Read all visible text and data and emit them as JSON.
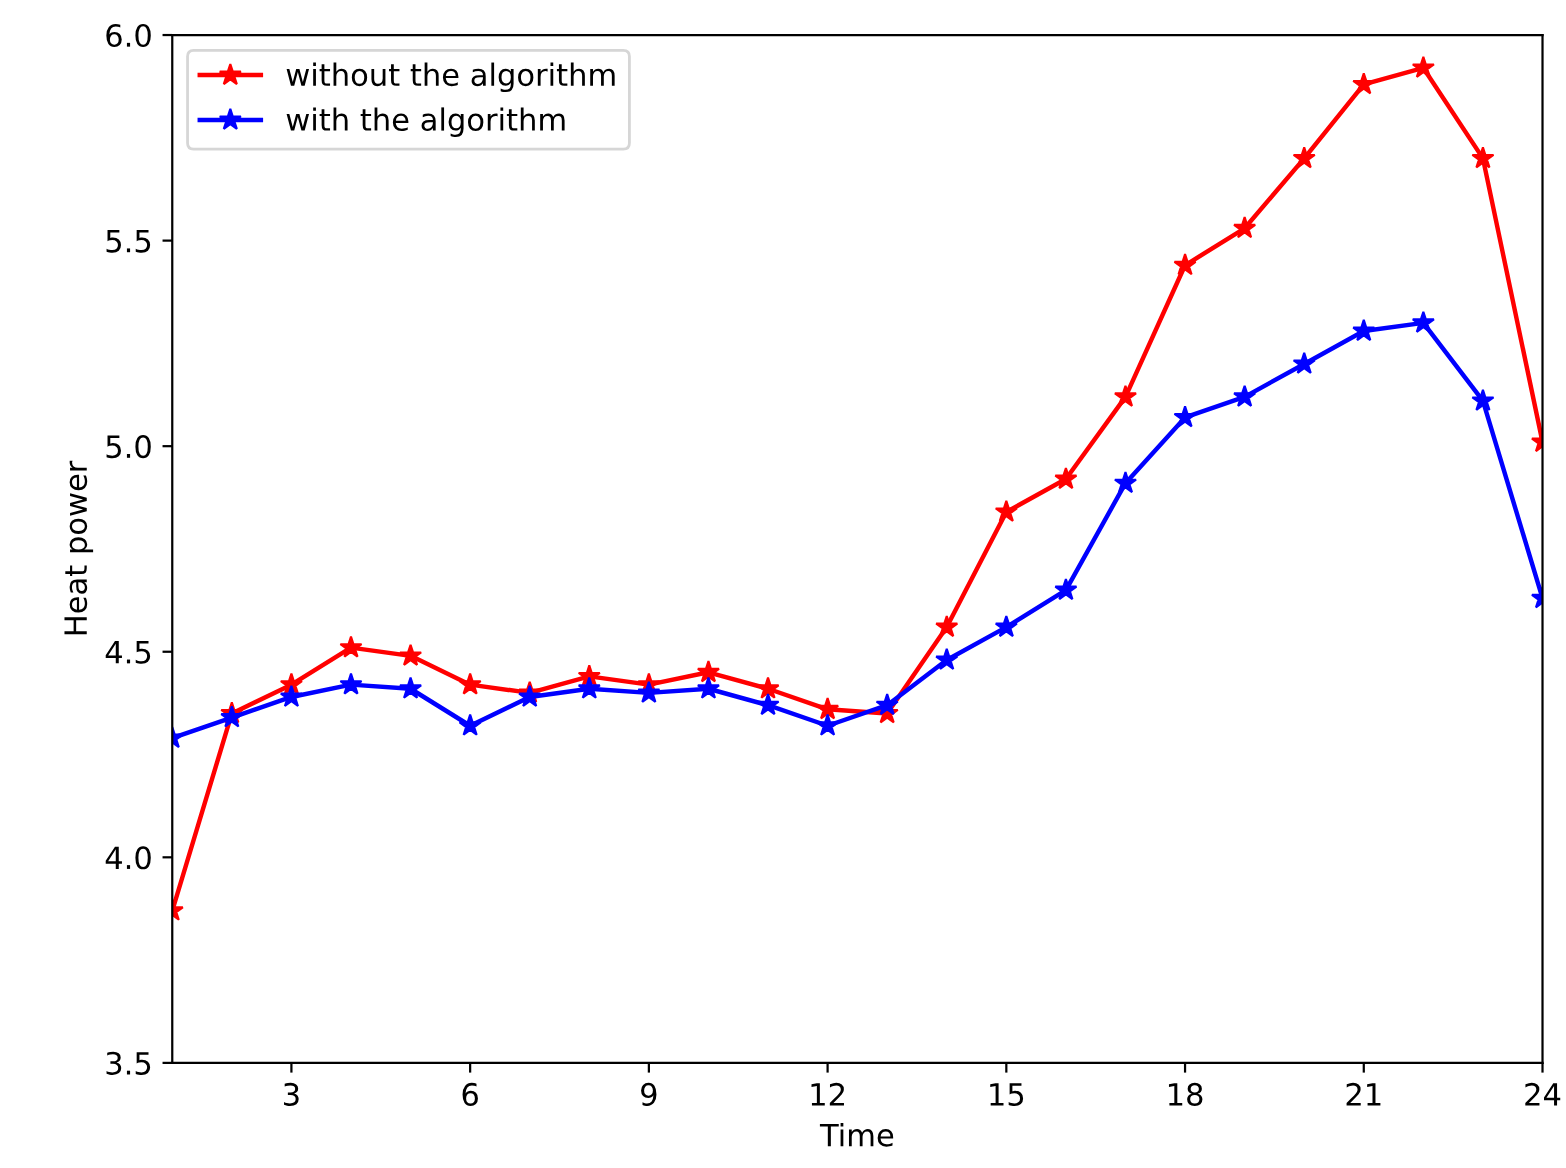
{
  "chart_data": {
    "type": "line",
    "xlabel": "Time",
    "ylabel": "Heat power",
    "x": [
      1,
      2,
      3,
      4,
      5,
      6,
      7,
      8,
      9,
      10,
      11,
      12,
      13,
      14,
      15,
      16,
      17,
      18,
      19,
      20,
      21,
      22,
      23,
      24
    ],
    "series": [
      {
        "name": "without the algorithm",
        "color": "#ff0000",
        "values": [
          3.87,
          4.35,
          4.42,
          4.51,
          4.49,
          4.42,
          4.4,
          4.44,
          4.42,
          4.45,
          4.41,
          4.36,
          4.35,
          4.56,
          4.84,
          4.92,
          5.12,
          5.44,
          5.53,
          5.7,
          5.88,
          5.92,
          5.7,
          5.01
        ]
      },
      {
        "name": "with the algorithm",
        "color": "#0000ff",
        "values": [
          4.29,
          4.34,
          4.39,
          4.42,
          4.41,
          4.32,
          4.39,
          4.41,
          4.4,
          4.41,
          4.37,
          4.32,
          4.37,
          4.48,
          4.56,
          4.65,
          4.91,
          5.07,
          5.12,
          5.2,
          5.28,
          5.3,
          5.11,
          4.63
        ]
      }
    ],
    "xlim": [
      1,
      24
    ],
    "xticks": [
      3,
      6,
      9,
      12,
      15,
      18,
      21,
      24
    ],
    "ylim": [
      3.5,
      6.0
    ],
    "yticks": [
      {
        "value": 3.5,
        "label": "3.5"
      },
      {
        "value": 4.0,
        "label": "4.0"
      },
      {
        "value": 4.5,
        "label": "4.5"
      },
      {
        "value": 5.0,
        "label": "5.0"
      },
      {
        "value": 5.5,
        "label": "5.5"
      },
      {
        "value": 6.0,
        "label": "6.0"
      }
    ],
    "marker": "star",
    "line_style": "solid",
    "legend": "top left",
    "grid": false
  }
}
